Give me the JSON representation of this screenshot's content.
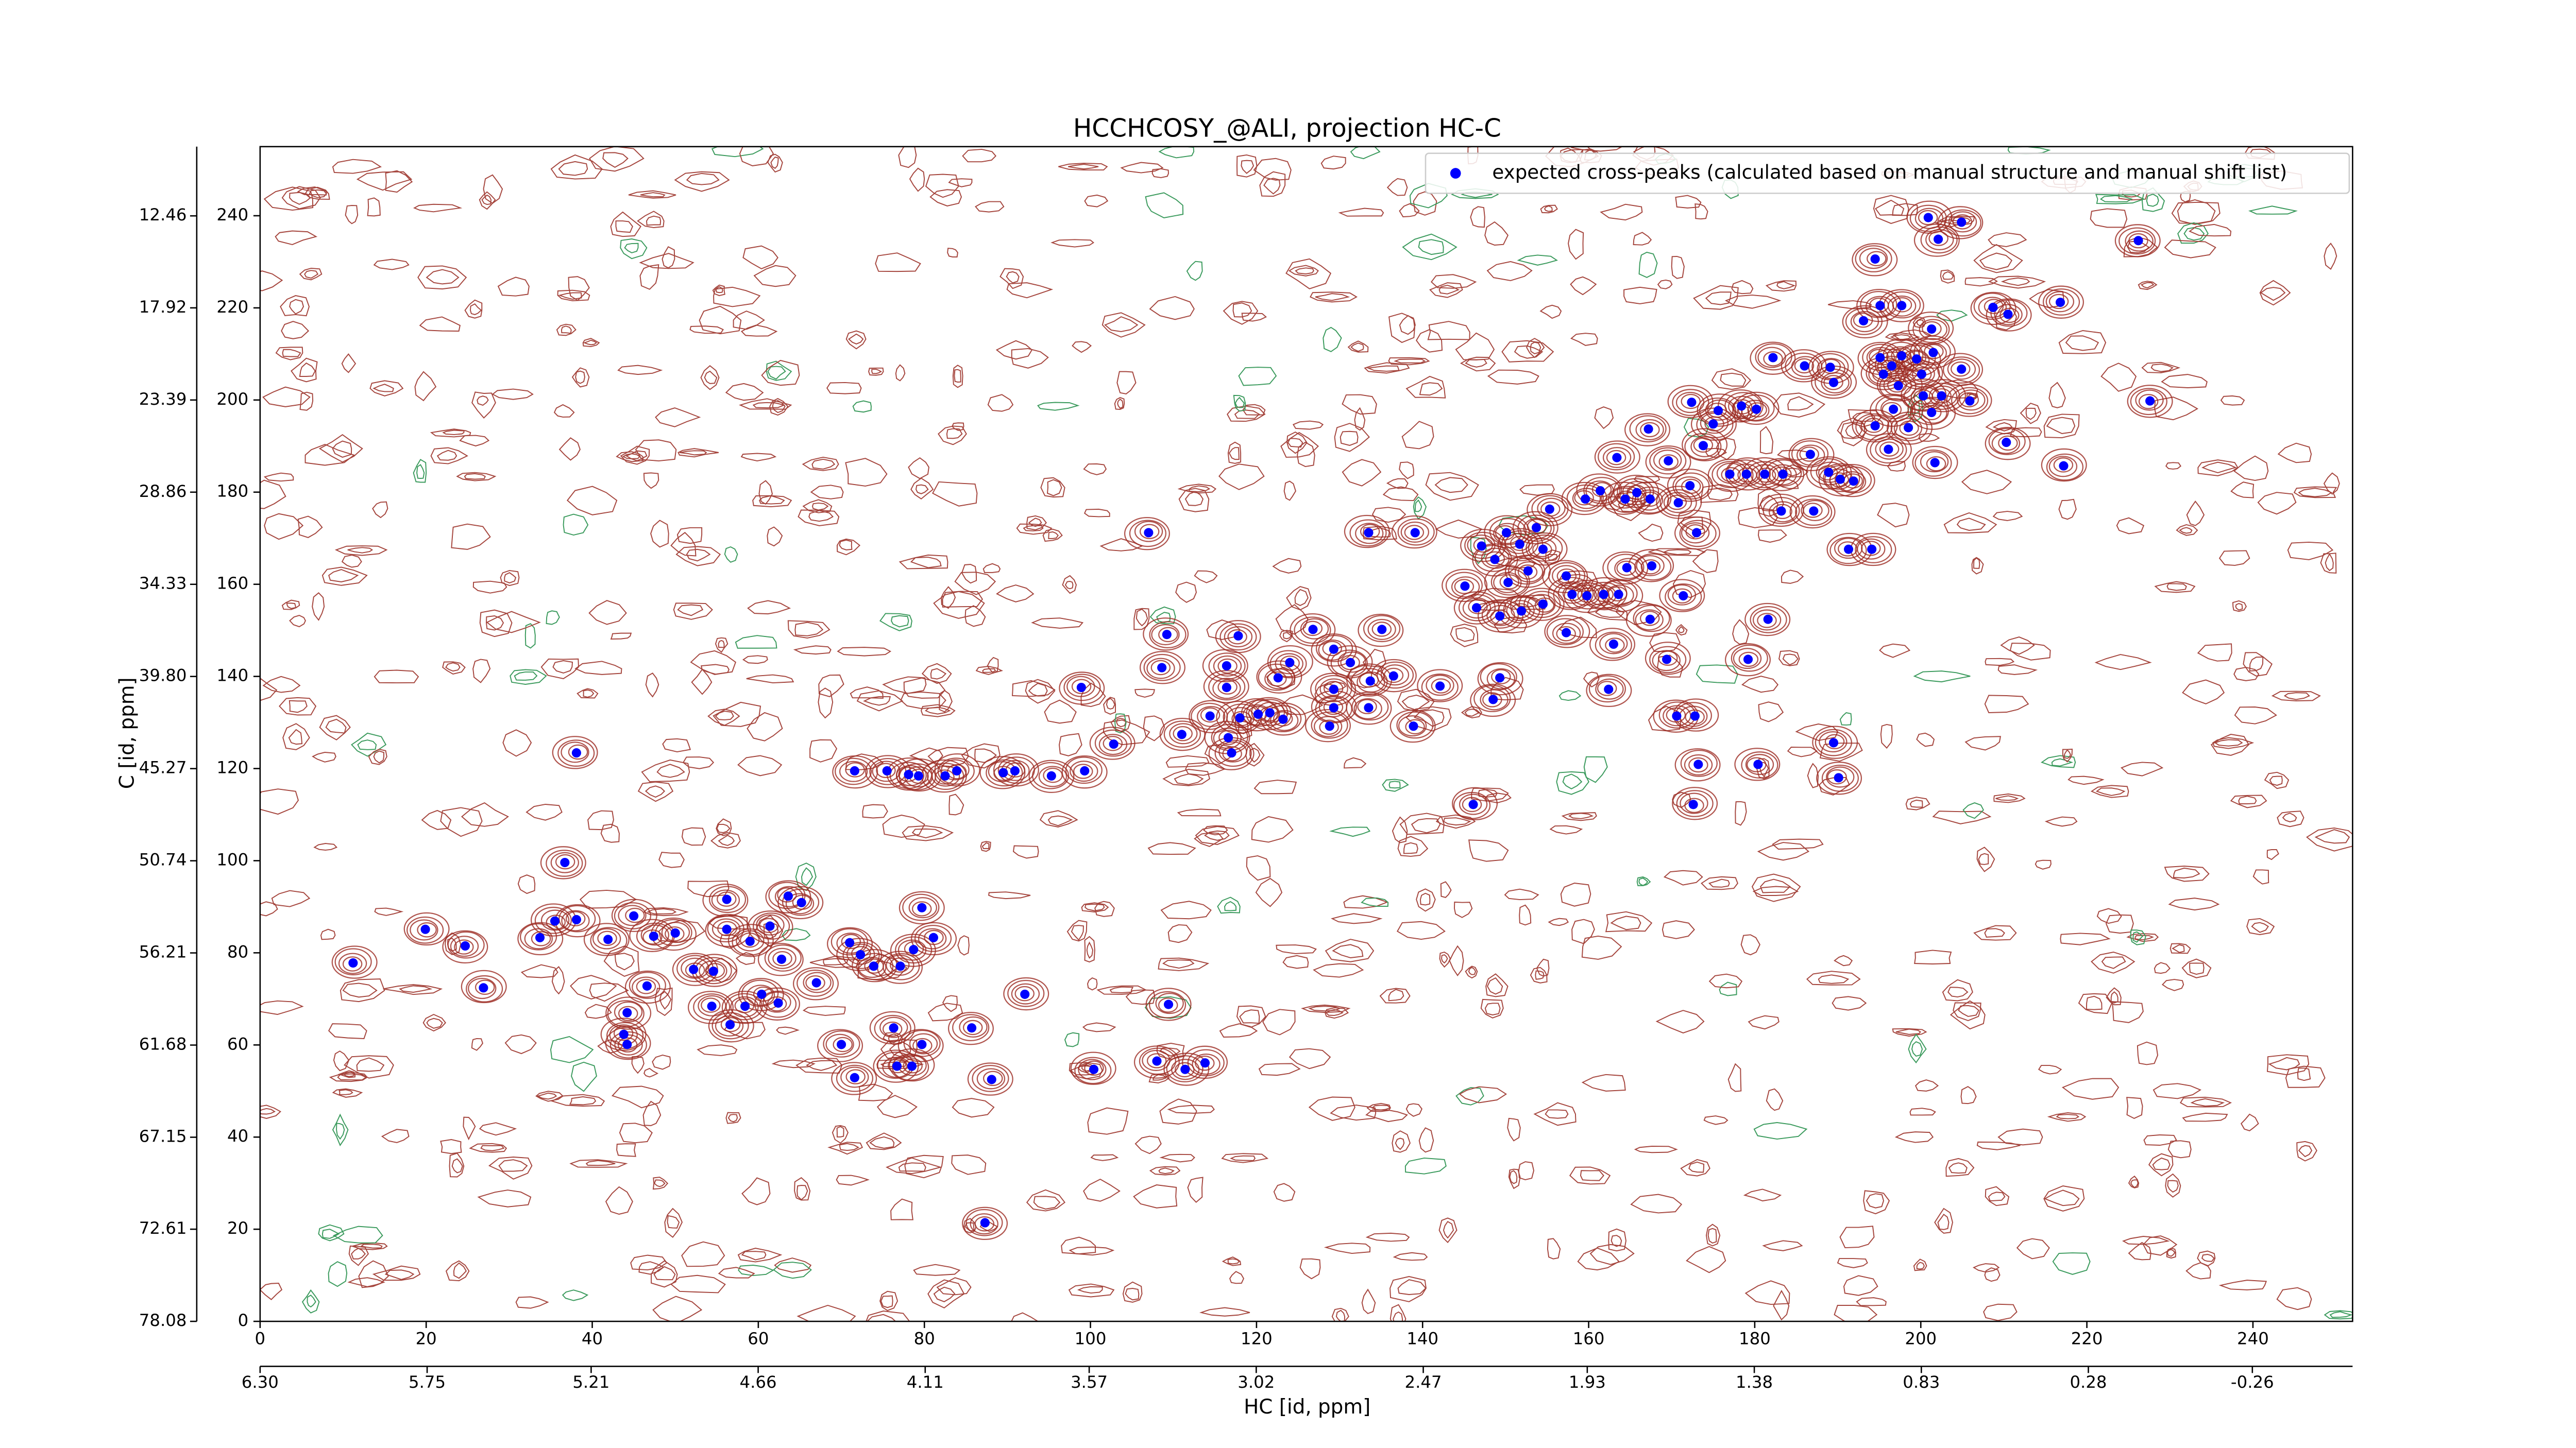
{
  "chart_data": {
    "type": "scatter",
    "title": "HCCHCOSY_@ALI, projection HC-C",
    "x_label": "HC [id, ppm]",
    "y_label": "C [id, ppm]",
    "xlim": [
      0,
      252
    ],
    "ylim": [
      0,
      255
    ],
    "xticks": [
      0,
      20,
      40,
      60,
      80,
      100,
      120,
      140,
      160,
      180,
      200,
      220,
      240
    ],
    "yticks": [
      0,
      20,
      40,
      60,
      80,
      100,
      120,
      140,
      160,
      180,
      200,
      220,
      240
    ],
    "x2lim": [
      6.3,
      -0.59
    ],
    "x2ticks": [
      {
        "value": 6.3,
        "label": "6.30"
      },
      5.75,
      5.21,
      4.66,
      4.11,
      3.57,
      3.02,
      2.47,
      1.93,
      1.38,
      0.83,
      0.28,
      -0.26
    ],
    "y2lim": [
      78.08,
      8.35
    ],
    "y2ticks": [
      78.08,
      72.61,
      67.15,
      61.68,
      56.21,
      50.74,
      45.27,
      {
        "value": 39.8,
        "label": "39.80"
      },
      34.33,
      28.86,
      23.39,
      17.92,
      12.46
    ],
    "legend": "upper right",
    "series": [
      {
        "name": "expected cross-peaks (calculated based on manual structure and manual shift list)",
        "color": "#0000ff",
        "x": [
          200.9,
          204.9,
          202.1,
          194.5,
          226.2,
          216.8,
          210.5,
          208.7,
          195.1,
          197.7,
          193.1,
          201.3,
          182.2,
          186.0,
          189.1,
          189.5,
          195.1,
          196.5,
          197.7,
          199.5,
          201.5,
          195.5,
          197.3,
          200.1,
          204.9,
          202.5,
          205.9,
          200.3,
          196.7,
          198.5,
          201.3,
          194.5,
          227.6,
          210.3,
          217.2,
          201.7,
          196.1,
          186.7,
          188.9,
          190.3,
          191.9,
          183.4,
          181.2,
          179.0,
          177.0,
          172.4,
          175.6,
          178.4,
          180.2,
          175.0,
          173.8,
          172.2,
          167.2,
          163.4,
          169.6,
          159.6,
          161.4,
          164.4,
          165.8,
          167.4,
          170.8,
          183.2,
          187.1,
          191.3,
          194.1,
          173.0,
          155.3,
          151.7,
          150.1,
          153.7,
          154.5,
          147.1,
          148.7,
          152.7,
          150.3,
          145.1,
          146.5,
          149.3,
          151.9,
          154.5,
          157.3,
          158.0,
          159.8,
          161.8,
          163.6,
          164.6,
          167.6,
          171.4,
          167.4,
          163.0,
          157.3,
          181.6,
          169.4,
          179.2,
          170.6,
          172.8,
          173.2,
          172.6,
          180.4,
          189.5,
          190.1,
          146.1,
          162.4,
          149.3,
          148.5,
          142.1,
          138.9,
          133.5,
          139.1,
          135.1,
          126.8,
          129.3,
          131.3,
          133.7,
          136.5,
          129.3,
          124.0,
          122.6,
          121.6,
          120.2,
          123.2,
          117.8,
          109.2,
          108.6,
          98.9,
          107.0,
          116.4,
          116.4,
          118.0,
          116.6,
          114.4,
          111.0,
          102.8,
          117.0,
          133.5,
          129.3,
          128.8,
          99.3,
          95.3,
          90.9,
          89.5,
          83.9,
          82.5,
          79.3,
          78.1,
          75.5,
          71.6,
          38.1,
          36.7,
          19.9,
          24.7,
          11.2,
          26.9,
          33.7,
          35.5,
          38.1,
          41.9,
          45.0,
          47.4,
          50.0,
          46.6,
          52.2,
          54.6,
          56.2,
          56.2,
          59.0,
          61.4,
          63.6,
          65.2,
          62.8,
          67.0,
          60.4,
          62.4,
          58.4,
          56.6,
          54.4,
          44.2,
          43.8,
          44.2,
          71.0,
          72.3,
          73.9,
          77.1,
          78.7,
          81.1,
          79.7,
          70.0,
          76.3,
          78.5,
          79.7,
          76.7,
          71.6,
          85.7,
          88.1,
          92.1,
          100.4,
          108.0,
          109.4,
          111.4,
          113.8,
          87.3
        ],
        "values": [
          239.6,
          238.6,
          234.9,
          230.6,
          234.6,
          221.2,
          218.6,
          220.1,
          220.5,
          220.5,
          217.2,
          215.4,
          209.2,
          207.4,
          207.1,
          203.8,
          209.2,
          207.4,
          209.6,
          208.9,
          210.3,
          205.6,
          203.1,
          205.6,
          206.7,
          200.9,
          199.8,
          200.9,
          198.0,
          194.0,
          197.3,
          194.4,
          199.8,
          190.8,
          185.7,
          186.4,
          189.3,
          188.2,
          184.3,
          182.8,
          182.4,
          183.9,
          183.9,
          183.9,
          183.9,
          199.5,
          197.7,
          198.7,
          198.0,
          194.8,
          190.1,
          181.4,
          193.7,
          187.5,
          186.8,
          178.5,
          180.3,
          178.5,
          179.9,
          178.5,
          177.7,
          175.9,
          175.9,
          167.6,
          167.6,
          171.2,
          176.3,
          168.7,
          171.2,
          172.3,
          167.6,
          168.3,
          165.4,
          162.9,
          160.4,
          159.6,
          154.9,
          153.1,
          154.2,
          155.7,
          161.8,
          157.8,
          157.5,
          157.8,
          157.8,
          163.6,
          164.0,
          157.5,
          152.4,
          147.0,
          149.5,
          152.4,
          143.7,
          143.7,
          131.4,
          131.4,
          120.9,
          112.2,
          120.9,
          125.6,
          118.0,
          112.2,
          137.2,
          139.7,
          135.0,
          137.9,
          129.2,
          171.2,
          171.2,
          150.2,
          150.2,
          145.9,
          143.0,
          139.0,
          140.1,
          137.2,
          143.0,
          139.7,
          132.1,
          131.8,
          130.7,
          148.8,
          149.1,
          141.9,
          137.6,
          171.2,
          142.3,
          137.6,
          131.0,
          126.7,
          131.4,
          127.4,
          125.3,
          123.4,
          133.2,
          133.2,
          129.2,
          119.5,
          118.4,
          119.5,
          119.1,
          119.5,
          118.4,
          118.4,
          118.7,
          119.5,
          119.5,
          123.4,
          99.6,
          85.1,
          81.5,
          77.8,
          72.4,
          83.3,
          86.9,
          87.2,
          82.9,
          88.0,
          83.6,
          84.3,
          72.8,
          76.4,
          76.0,
          85.1,
          91.6,
          82.5,
          85.8,
          92.3,
          90.9,
          78.6,
          73.5,
          71.0,
          69.1,
          68.4,
          64.4,
          68.4,
          67.0,
          62.3,
          60.1,
          82.2,
          79.6,
          77.1,
          77.1,
          80.7,
          83.3,
          89.8,
          60.1,
          63.7,
          55.4,
          60.1,
          55.4,
          52.9,
          63.7,
          52.5,
          71.0,
          54.7,
          56.5,
          68.8,
          54.7,
          56.1,
          21.4
        ]
      }
    ]
  }
}
